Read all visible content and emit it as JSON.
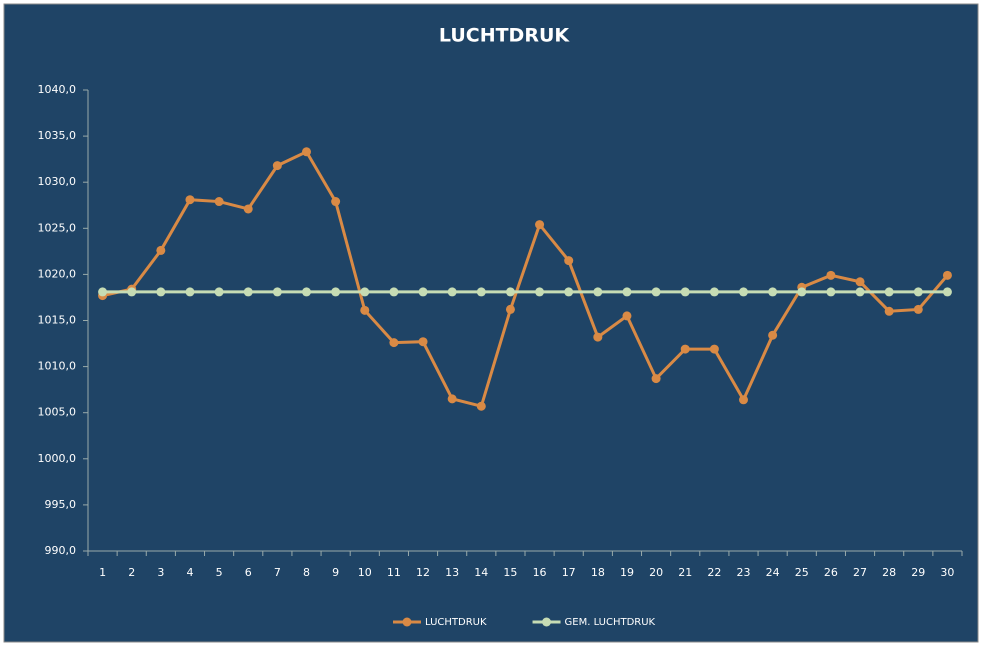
{
  "chart_data": {
    "type": "line",
    "title": "LUCHTDRUK",
    "categories": [
      "1",
      "2",
      "3",
      "4",
      "5",
      "6",
      "7",
      "8",
      "9",
      "10",
      "11",
      "12",
      "13",
      "14",
      "15",
      "16",
      "17",
      "18",
      "19",
      "20",
      "21",
      "22",
      "23",
      "24",
      "25",
      "26",
      "27",
      "28",
      "29",
      "30"
    ],
    "series": [
      {
        "name": "LUCHTDRUK",
        "color": "#d98a45",
        "values": [
          1017.7,
          1018.4,
          1022.6,
          1028.1,
          1027.9,
          1027.1,
          1031.8,
          1033.3,
          1027.9,
          1016.1,
          1012.6,
          1012.7,
          1006.5,
          1005.7,
          1016.2,
          1025.4,
          1021.5,
          1013.2,
          1015.5,
          1008.7,
          1011.9,
          1011.9,
          1006.4,
          1013.4,
          1018.6,
          1019.9,
          1019.2,
          1016.0,
          1016.2,
          1019.9
        ]
      },
      {
        "name": "GEM. LUCHTDRUK",
        "color": "#c6dcb4",
        "values": [
          1018.1,
          1018.1,
          1018.1,
          1018.1,
          1018.1,
          1018.1,
          1018.1,
          1018.1,
          1018.1,
          1018.1,
          1018.1,
          1018.1,
          1018.1,
          1018.1,
          1018.1,
          1018.1,
          1018.1,
          1018.1,
          1018.1,
          1018.1,
          1018.1,
          1018.1,
          1018.1,
          1018.1,
          1018.1,
          1018.1,
          1018.1,
          1018.1,
          1018.1,
          1018.1
        ]
      }
    ],
    "ylim": [
      990,
      1040
    ],
    "yticks": [
      {
        "value": 990,
        "label": "990,0"
      },
      {
        "value": 995,
        "label": "995,0"
      },
      {
        "value": 1000,
        "label": "1000,0"
      },
      {
        "value": 1005,
        "label": "1005,0"
      },
      {
        "value": 1010,
        "label": "1010,0"
      },
      {
        "value": 1015,
        "label": "1015,0"
      },
      {
        "value": 1020,
        "label": "1020,0"
      },
      {
        "value": 1025,
        "label": "1025,0"
      },
      {
        "value": 1030,
        "label": "1030,0"
      },
      {
        "value": 1035,
        "label": "1035,0"
      },
      {
        "value": 1040,
        "label": "1040,0"
      }
    ],
    "grid": false,
    "legend": "bottom"
  }
}
